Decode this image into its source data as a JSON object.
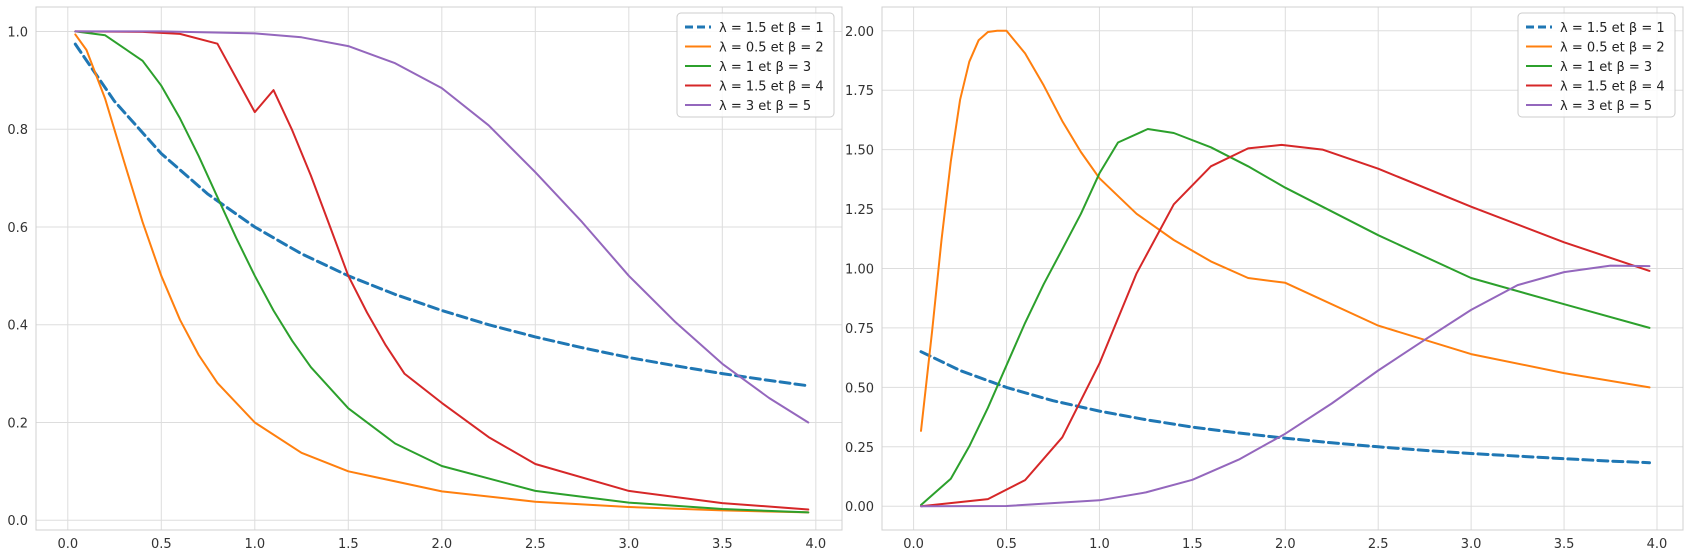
{
  "chart_data": [
    {
      "type": "line",
      "title": "",
      "xlabel": "",
      "ylabel": "",
      "xlim": [
        -0.17,
        4.14
      ],
      "ylim": [
        -0.02,
        1.05
      ],
      "xticks": [
        "0.0",
        "0.5",
        "1.0",
        "1.5",
        "2.0",
        "2.5",
        "3.0",
        "3.5",
        "4.0"
      ],
      "yticks": [
        "0.0",
        "0.2",
        "0.4",
        "0.6",
        "0.8",
        "1.0"
      ],
      "grid": true,
      "legend": "top-right",
      "series": [
        {
          "name": "λ = 1.5 et β = 1",
          "color": "#1f77b4",
          "dashed": true,
          "x": [
            0.04,
            0.25,
            0.5,
            0.75,
            1.0,
            1.25,
            1.5,
            1.75,
            2.0,
            2.25,
            2.5,
            2.75,
            3.0,
            3.25,
            3.5,
            3.75,
            3.96
          ],
          "y": [
            0.974,
            0.857,
            0.75,
            0.667,
            0.6,
            0.545,
            0.5,
            0.462,
            0.429,
            0.4,
            0.375,
            0.353,
            0.333,
            0.316,
            0.3,
            0.286,
            0.275
          ]
        },
        {
          "name": "λ = 0.5 et β = 2",
          "color": "#ff7f0e",
          "dashed": false,
          "x": [
            0.04,
            0.1,
            0.2,
            0.3,
            0.4,
            0.5,
            0.6,
            0.7,
            0.8,
            1.0,
            1.25,
            1.5,
            2.0,
            2.5,
            3.0,
            3.5,
            3.96
          ],
          "y": [
            0.994,
            0.962,
            0.862,
            0.735,
            0.61,
            0.5,
            0.41,
            0.338,
            0.281,
            0.2,
            0.138,
            0.1,
            0.059,
            0.038,
            0.027,
            0.02,
            0.016
          ]
        },
        {
          "name": "λ = 1 et β = 3",
          "color": "#2ca02c",
          "dashed": false,
          "x": [
            0.04,
            0.2,
            0.4,
            0.5,
            0.6,
            0.7,
            0.8,
            0.9,
            1.0,
            1.1,
            1.2,
            1.3,
            1.5,
            1.75,
            2.0,
            2.5,
            3.0,
            3.5,
            3.96
          ],
          "y": [
            1.0,
            0.992,
            0.94,
            0.889,
            0.822,
            0.745,
            0.661,
            0.578,
            0.5,
            0.429,
            0.367,
            0.313,
            0.229,
            0.157,
            0.111,
            0.06,
            0.036,
            0.023,
            0.016
          ]
        },
        {
          "name": "λ = 1.5 et β = 4",
          "color": "#d62728",
          "dashed": false,
          "x": [
            0.04,
            0.4,
            0.6,
            0.8,
            1.0,
            1.1,
            1.2,
            1.3,
            1.4,
            1.5,
            1.6,
            1.7,
            1.8,
            2.0,
            2.25,
            2.5,
            3.0,
            3.5,
            3.96
          ],
          "y": [
            1.0,
            0.999,
            0.995,
            0.975,
            0.835,
            0.88,
            0.798,
            0.705,
            0.603,
            0.5,
            0.425,
            0.358,
            0.3,
            0.24,
            0.17,
            0.115,
            0.06,
            0.035,
            0.022
          ]
        },
        {
          "name": "λ = 3 et β = 5",
          "color": "#9467bd",
          "dashed": false,
          "x": [
            0.04,
            0.5,
            1.0,
            1.25,
            1.5,
            1.75,
            2.0,
            2.25,
            2.5,
            2.75,
            3.0,
            3.25,
            3.5,
            3.75,
            3.96
          ],
          "y": [
            1.0,
            1.0,
            0.996,
            0.988,
            0.97,
            0.935,
            0.884,
            0.808,
            0.712,
            0.61,
            0.5,
            0.405,
            0.32,
            0.25,
            0.2
          ]
        }
      ]
    },
    {
      "type": "line",
      "title": "",
      "xlabel": "",
      "ylabel": "",
      "xlim": [
        -0.17,
        4.14
      ],
      "ylim": [
        -0.1,
        2.1
      ],
      "xticks": [
        "0.0",
        "0.5",
        "1.0",
        "1.5",
        "2.0",
        "2.5",
        "3.0",
        "3.5",
        "4.0"
      ],
      "yticks": [
        "0.00",
        "0.25",
        "0.50",
        "0.75",
        "1.00",
        "1.25",
        "1.50",
        "1.75",
        "2.00"
      ],
      "grid": true,
      "legend": "top-right",
      "series": [
        {
          "name": "λ = 1.5 et β = 1",
          "color": "#1f77b4",
          "dashed": true,
          "x": [
            0.04,
            0.25,
            0.5,
            0.75,
            1.0,
            1.25,
            1.5,
            1.75,
            2.0,
            2.25,
            2.5,
            2.75,
            3.0,
            3.25,
            3.5,
            3.75,
            3.96
          ],
          "y": [
            0.65,
            0.571,
            0.5,
            0.444,
            0.4,
            0.364,
            0.333,
            0.308,
            0.286,
            0.267,
            0.25,
            0.235,
            0.222,
            0.211,
            0.2,
            0.19,
            0.183
          ]
        },
        {
          "name": "λ = 0.5 et β = 2",
          "color": "#ff7f0e",
          "dashed": false,
          "x": [
            0.04,
            0.1,
            0.15,
            0.2,
            0.25,
            0.3,
            0.35,
            0.4,
            0.45,
            0.5,
            0.6,
            0.7,
            0.8,
            0.9,
            1.0,
            1.2,
            1.4,
            1.6,
            1.8,
            2.0,
            2.5,
            3.0,
            3.5,
            3.96
          ],
          "y": [
            0.317,
            0.74,
            1.12,
            1.45,
            1.71,
            1.87,
            1.96,
            1.995,
            2.0,
            2.0,
            1.905,
            1.77,
            1.62,
            1.49,
            1.38,
            1.23,
            1.12,
            1.03,
            0.96,
            0.94,
            0.76,
            0.64,
            0.56,
            0.5
          ]
        },
        {
          "name": "λ = 1 et β = 3",
          "color": "#2ca02c",
          "dashed": false,
          "x": [
            0.04,
            0.2,
            0.3,
            0.4,
            0.5,
            0.6,
            0.7,
            0.8,
            0.9,
            1.0,
            1.1,
            1.26,
            1.4,
            1.6,
            1.8,
            2.0,
            2.5,
            3.0,
            3.5,
            3.96
          ],
          "y": [
            0.005,
            0.116,
            0.252,
            0.414,
            0.593,
            0.771,
            0.934,
            1.081,
            1.23,
            1.4,
            1.53,
            1.587,
            1.57,
            1.51,
            1.43,
            1.34,
            1.14,
            0.96,
            0.85,
            0.75
          ]
        },
        {
          "name": "λ = 1.5 et β = 4",
          "color": "#d62728",
          "dashed": false,
          "x": [
            0.04,
            0.4,
            0.6,
            0.8,
            1.0,
            1.2,
            1.4,
            1.6,
            1.8,
            1.98,
            2.2,
            2.5,
            3.0,
            3.5,
            3.96
          ],
          "y": [
            0.0,
            0.03,
            0.11,
            0.29,
            0.6,
            0.98,
            1.27,
            1.43,
            1.505,
            1.52,
            1.5,
            1.42,
            1.26,
            1.11,
            0.99
          ]
        },
        {
          "name": "λ = 3 et β = 5",
          "color": "#9467bd",
          "dashed": false,
          "x": [
            0.04,
            0.5,
            1.0,
            1.25,
            1.5,
            1.75,
            2.0,
            2.25,
            2.5,
            2.75,
            3.0,
            3.25,
            3.5,
            3.75,
            3.96
          ],
          "y": [
            0.0,
            0.001,
            0.025,
            0.058,
            0.111,
            0.196,
            0.305,
            0.432,
            0.571,
            0.7,
            0.826,
            0.93,
            0.985,
            1.012,
            1.01
          ]
        }
      ]
    }
  ]
}
